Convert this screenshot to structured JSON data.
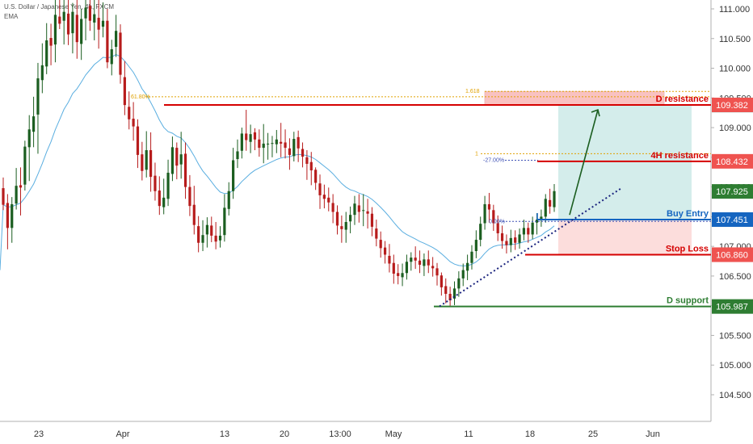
{
  "header": {
    "symbol": "U.S. Dollar / Japanese Yen, 4h, FXCM",
    "indicator": "EMA"
  },
  "colors": {
    "up": "#26a69a",
    "down": "#ef5350",
    "candle_up": "#1b5e20",
    "candle_down": "#b71c1c",
    "ema": "#5aaee0",
    "resistance": "#d50000",
    "support": "#2e7d32",
    "entry": "#1565c0",
    "fib": "#e0a100",
    "fib_blue": "#3f51b5",
    "grid_price_badge": "#ef5350"
  },
  "chart_data": {
    "type": "candlestick",
    "title": "",
    "x_tick_labels": [
      "23",
      "Apr",
      "13",
      "20",
      "13:00",
      "May",
      "11",
      "18",
      "25",
      "Jun"
    ],
    "y_tick_labels": [
      "111.000",
      "110.500",
      "110.000",
      "109.500",
      "109.000",
      "108.500",
      "108.000",
      "107.500",
      "107.000",
      "106.500",
      "106.000",
      "105.500",
      "105.000",
      "104.500"
    ],
    "ylim": [
      104.25,
      111.15
    ],
    "levels": [
      {
        "name": "D resistance",
        "price": 109.382,
        "badge": "109.382",
        "color": "#d50000"
      },
      {
        "name": "4H resistance",
        "price": 108.432,
        "badge": "108.432",
        "color": "#d50000"
      },
      {
        "name": "Buy Entry",
        "price": 107.451,
        "badge": "107.451",
        "color": "#1565c0"
      },
      {
        "name": "Stop Loss",
        "price": 106.86,
        "badge": "106.860",
        "color": "#d50000"
      },
      {
        "name": "D support",
        "price": 105.987,
        "badge": "105.987",
        "color": "#2e7d32"
      }
    ],
    "price_badges": [
      {
        "label": "109.380",
        "price": 109.38,
        "color": "#26a69a"
      },
      {
        "label": "107.925",
        "price": 107.925,
        "color": "#2e7d32"
      },
      {
        "label": "107.450",
        "price": 107.45,
        "color": "#8a8a8a"
      },
      {
        "label": "106.859",
        "price": 106.859,
        "color": "#d50000"
      }
    ],
    "fib_labels": [
      {
        "label": "61.80%",
        "price": 109.52
      },
      {
        "label": "1.618",
        "price": 109.61
      },
      {
        "label": "1",
        "price": 108.56
      },
      {
        "label": "-27.00%",
        "price": 108.45
      },
      {
        "label": "0.00%",
        "price": 107.42
      }
    ],
    "candles": [
      {
        "o": 107.98,
        "h": 108.16,
        "l": 107.61,
        "c": 107.7
      },
      {
        "o": 107.73,
        "h": 107.88,
        "l": 106.95,
        "c": 107.31
      },
      {
        "o": 107.31,
        "h": 107.83,
        "l": 107.06,
        "c": 107.71
      },
      {
        "o": 107.72,
        "h": 108.32,
        "l": 107.62,
        "c": 108.02
      },
      {
        "o": 108.03,
        "h": 108.33,
        "l": 107.52,
        "c": 107.99
      },
      {
        "o": 108.04,
        "h": 108.78,
        "l": 107.94,
        "c": 108.68
      },
      {
        "o": 108.67,
        "h": 109.21,
        "l": 108.1,
        "c": 108.97
      },
      {
        "o": 108.93,
        "h": 109.52,
        "l": 108.67,
        "c": 109.19
      },
      {
        "o": 109.22,
        "h": 110.09,
        "l": 108.56,
        "c": 109.83
      },
      {
        "o": 109.8,
        "h": 110.42,
        "l": 109.58,
        "c": 110.05
      },
      {
        "o": 110.03,
        "h": 110.76,
        "l": 109.9,
        "c": 110.47
      },
      {
        "o": 110.51,
        "h": 110.75,
        "l": 110.05,
        "c": 110.38
      },
      {
        "o": 110.4,
        "h": 111.15,
        "l": 110.1,
        "c": 110.9
      },
      {
        "o": 110.87,
        "h": 111.2,
        "l": 110.66,
        "c": 110.75
      },
      {
        "o": 110.8,
        "h": 111.2,
        "l": 110.4,
        "c": 110.95
      },
      {
        "o": 110.92,
        "h": 111.2,
        "l": 110.39,
        "c": 110.57
      },
      {
        "o": 110.59,
        "h": 111.1,
        "l": 110.25,
        "c": 110.95
      },
      {
        "o": 110.9,
        "h": 111.2,
        "l": 110.16,
        "c": 110.44
      },
      {
        "o": 110.41,
        "h": 111.0,
        "l": 110.14,
        "c": 110.83
      },
      {
        "o": 110.84,
        "h": 111.2,
        "l": 110.47,
        "c": 111.02
      },
      {
        "o": 111.05,
        "h": 111.2,
        "l": 110.63,
        "c": 110.8
      },
      {
        "o": 110.77,
        "h": 111.2,
        "l": 110.47,
        "c": 110.91
      },
      {
        "o": 110.85,
        "h": 111.2,
        "l": 110.33,
        "c": 110.65
      },
      {
        "o": 110.7,
        "h": 111.11,
        "l": 110.52,
        "c": 110.8
      },
      {
        "o": 110.8,
        "h": 111.0,
        "l": 110.0,
        "c": 110.1
      },
      {
        "o": 110.07,
        "h": 110.48,
        "l": 109.88,
        "c": 110.32
      },
      {
        "o": 110.36,
        "h": 110.9,
        "l": 110.19,
        "c": 110.63
      },
      {
        "o": 110.6,
        "h": 110.74,
        "l": 109.74,
        "c": 109.89
      },
      {
        "o": 109.85,
        "h": 110.12,
        "l": 109.21,
        "c": 109.38
      },
      {
        "o": 109.35,
        "h": 109.61,
        "l": 108.97,
        "c": 109.14
      },
      {
        "o": 109.15,
        "h": 109.43,
        "l": 108.78,
        "c": 109.02
      },
      {
        "o": 109.02,
        "h": 109.14,
        "l": 108.32,
        "c": 108.54
      },
      {
        "o": 108.55,
        "h": 108.76,
        "l": 108.11,
        "c": 108.27
      },
      {
        "o": 108.29,
        "h": 108.94,
        "l": 108.16,
        "c": 108.62
      },
      {
        "o": 108.62,
        "h": 108.92,
        "l": 107.92,
        "c": 108.17
      },
      {
        "o": 108.19,
        "h": 108.41,
        "l": 107.77,
        "c": 107.93
      },
      {
        "o": 107.94,
        "h": 108.18,
        "l": 107.53,
        "c": 107.68
      },
      {
        "o": 107.66,
        "h": 108.14,
        "l": 107.54,
        "c": 107.82
      },
      {
        "o": 107.8,
        "h": 108.46,
        "l": 107.68,
        "c": 108.24
      },
      {
        "o": 108.22,
        "h": 108.85,
        "l": 108.1,
        "c": 108.67
      },
      {
        "o": 108.66,
        "h": 108.75,
        "l": 108.13,
        "c": 108.36
      },
      {
        "o": 108.38,
        "h": 108.93,
        "l": 108.14,
        "c": 108.55
      },
      {
        "o": 108.56,
        "h": 108.75,
        "l": 107.8,
        "c": 108.0
      },
      {
        "o": 108.0,
        "h": 108.2,
        "l": 107.51,
        "c": 107.68
      },
      {
        "o": 107.7,
        "h": 108.02,
        "l": 107.2,
        "c": 107.36
      },
      {
        "o": 107.34,
        "h": 107.51,
        "l": 106.9,
        "c": 107.06
      },
      {
        "o": 107.06,
        "h": 107.44,
        "l": 106.92,
        "c": 107.19
      },
      {
        "o": 107.2,
        "h": 107.49,
        "l": 106.98,
        "c": 107.36
      },
      {
        "o": 107.35,
        "h": 107.5,
        "l": 107.07,
        "c": 107.18
      },
      {
        "o": 107.18,
        "h": 107.41,
        "l": 106.95,
        "c": 107.08
      },
      {
        "o": 107.1,
        "h": 107.34,
        "l": 106.98,
        "c": 107.18
      },
      {
        "o": 107.19,
        "h": 107.88,
        "l": 107.08,
        "c": 107.65
      },
      {
        "o": 107.63,
        "h": 108.08,
        "l": 107.52,
        "c": 107.93
      },
      {
        "o": 107.93,
        "h": 108.66,
        "l": 107.8,
        "c": 108.45
      },
      {
        "o": 108.47,
        "h": 108.8,
        "l": 108.32,
        "c": 108.6
      },
      {
        "o": 108.61,
        "h": 109.0,
        "l": 108.48,
        "c": 108.9
      },
      {
        "o": 108.9,
        "h": 109.3,
        "l": 108.61,
        "c": 108.79
      },
      {
        "o": 108.76,
        "h": 109.05,
        "l": 108.57,
        "c": 108.89
      },
      {
        "o": 108.92,
        "h": 108.99,
        "l": 108.62,
        "c": 108.8
      },
      {
        "o": 108.8,
        "h": 108.97,
        "l": 108.51,
        "c": 108.66
      },
      {
        "o": 108.66,
        "h": 109.06,
        "l": 108.4,
        "c": 108.73
      },
      {
        "o": 108.72,
        "h": 108.91,
        "l": 108.46,
        "c": 108.73
      },
      {
        "o": 108.73,
        "h": 108.86,
        "l": 108.5,
        "c": 108.74
      },
      {
        "o": 108.72,
        "h": 108.96,
        "l": 108.57,
        "c": 108.8
      },
      {
        "o": 108.76,
        "h": 109.08,
        "l": 108.5,
        "c": 108.73
      },
      {
        "o": 108.75,
        "h": 108.97,
        "l": 108.48,
        "c": 108.66
      },
      {
        "o": 108.65,
        "h": 108.82,
        "l": 108.29,
        "c": 108.54
      },
      {
        "o": 108.52,
        "h": 108.93,
        "l": 108.43,
        "c": 108.81
      },
      {
        "o": 108.84,
        "h": 108.95,
        "l": 108.42,
        "c": 108.65
      },
      {
        "o": 108.64,
        "h": 108.75,
        "l": 108.33,
        "c": 108.51
      },
      {
        "o": 108.5,
        "h": 108.62,
        "l": 108.12,
        "c": 108.39
      },
      {
        "o": 108.42,
        "h": 108.59,
        "l": 108.03,
        "c": 108.28
      },
      {
        "o": 108.29,
        "h": 108.33,
        "l": 107.95,
        "c": 108.07
      },
      {
        "o": 108.06,
        "h": 108.21,
        "l": 107.63,
        "c": 107.86
      },
      {
        "o": 107.87,
        "h": 108.04,
        "l": 107.64,
        "c": 107.8
      },
      {
        "o": 107.82,
        "h": 107.99,
        "l": 107.59,
        "c": 107.74
      },
      {
        "o": 107.73,
        "h": 107.88,
        "l": 107.39,
        "c": 107.58
      },
      {
        "o": 107.58,
        "h": 107.69,
        "l": 107.2,
        "c": 107.35
      },
      {
        "o": 107.34,
        "h": 107.52,
        "l": 107.06,
        "c": 107.29
      },
      {
        "o": 107.28,
        "h": 107.58,
        "l": 107.06,
        "c": 107.41
      },
      {
        "o": 107.42,
        "h": 107.67,
        "l": 107.22,
        "c": 107.53
      },
      {
        "o": 107.53,
        "h": 107.85,
        "l": 107.36,
        "c": 107.72
      },
      {
        "o": 107.69,
        "h": 107.88,
        "l": 107.4,
        "c": 107.58
      },
      {
        "o": 107.61,
        "h": 107.88,
        "l": 107.34,
        "c": 107.61
      },
      {
        "o": 107.59,
        "h": 107.8,
        "l": 107.3,
        "c": 107.55
      },
      {
        "o": 107.55,
        "h": 107.66,
        "l": 107.17,
        "c": 107.33
      },
      {
        "o": 107.3,
        "h": 107.45,
        "l": 107.0,
        "c": 107.13
      },
      {
        "o": 107.11,
        "h": 107.25,
        "l": 106.81,
        "c": 106.97
      },
      {
        "o": 106.98,
        "h": 107.09,
        "l": 106.71,
        "c": 106.86
      },
      {
        "o": 106.84,
        "h": 107.04,
        "l": 106.56,
        "c": 106.71
      },
      {
        "o": 106.72,
        "h": 106.86,
        "l": 106.37,
        "c": 106.54
      },
      {
        "o": 106.55,
        "h": 106.7,
        "l": 106.36,
        "c": 106.5
      },
      {
        "o": 106.48,
        "h": 106.71,
        "l": 106.33,
        "c": 106.55
      },
      {
        "o": 106.55,
        "h": 106.86,
        "l": 106.44,
        "c": 106.74
      },
      {
        "o": 106.74,
        "h": 106.9,
        "l": 106.59,
        "c": 106.81
      },
      {
        "o": 106.81,
        "h": 107.0,
        "l": 106.62,
        "c": 106.76
      },
      {
        "o": 106.76,
        "h": 106.93,
        "l": 106.55,
        "c": 106.69
      },
      {
        "o": 106.67,
        "h": 106.88,
        "l": 106.5,
        "c": 106.78
      },
      {
        "o": 106.78,
        "h": 106.93,
        "l": 106.55,
        "c": 106.68
      },
      {
        "o": 106.67,
        "h": 106.82,
        "l": 106.49,
        "c": 106.63
      },
      {
        "o": 106.63,
        "h": 106.72,
        "l": 106.34,
        "c": 106.51
      },
      {
        "o": 106.51,
        "h": 106.56,
        "l": 106.17,
        "c": 106.31
      },
      {
        "o": 106.33,
        "h": 106.46,
        "l": 106.04,
        "c": 106.2
      },
      {
        "o": 106.2,
        "h": 106.32,
        "l": 105.98,
        "c": 106.09
      },
      {
        "o": 106.12,
        "h": 106.41,
        "l": 106.01,
        "c": 106.29
      },
      {
        "o": 106.29,
        "h": 106.58,
        "l": 106.15,
        "c": 106.46
      },
      {
        "o": 106.46,
        "h": 106.71,
        "l": 106.33,
        "c": 106.6
      },
      {
        "o": 106.59,
        "h": 106.86,
        "l": 106.43,
        "c": 106.72
      },
      {
        "o": 106.72,
        "h": 107.02,
        "l": 106.61,
        "c": 106.91
      },
      {
        "o": 106.92,
        "h": 107.27,
        "l": 106.8,
        "c": 107.11
      },
      {
        "o": 107.11,
        "h": 107.5,
        "l": 107.0,
        "c": 107.38
      },
      {
        "o": 107.39,
        "h": 107.85,
        "l": 107.28,
        "c": 107.71
      },
      {
        "o": 107.71,
        "h": 107.9,
        "l": 107.4,
        "c": 107.62
      },
      {
        "o": 107.61,
        "h": 107.7,
        "l": 107.26,
        "c": 107.39
      },
      {
        "o": 107.39,
        "h": 107.52,
        "l": 107.09,
        "c": 107.22
      },
      {
        "o": 107.22,
        "h": 107.35,
        "l": 106.96,
        "c": 107.09
      },
      {
        "o": 107.09,
        "h": 107.2,
        "l": 106.88,
        "c": 107.02
      },
      {
        "o": 107.02,
        "h": 107.28,
        "l": 106.9,
        "c": 107.14
      },
      {
        "o": 107.15,
        "h": 107.27,
        "l": 106.94,
        "c": 107.06
      },
      {
        "o": 107.06,
        "h": 107.3,
        "l": 106.96,
        "c": 107.2
      },
      {
        "o": 107.2,
        "h": 107.45,
        "l": 107.1,
        "c": 107.31
      },
      {
        "o": 107.31,
        "h": 107.4,
        "l": 107.06,
        "c": 107.2
      },
      {
        "o": 107.2,
        "h": 107.5,
        "l": 107.12,
        "c": 107.4
      },
      {
        "o": 107.4,
        "h": 107.56,
        "l": 107.2,
        "c": 107.45
      },
      {
        "o": 107.45,
        "h": 107.62,
        "l": 107.33,
        "c": 107.5
      },
      {
        "o": 107.5,
        "h": 107.88,
        "l": 107.4,
        "c": 107.8
      },
      {
        "o": 107.78,
        "h": 107.97,
        "l": 107.55,
        "c": 107.67
      },
      {
        "o": 107.66,
        "h": 108.05,
        "l": 107.58,
        "c": 107.93
      }
    ]
  },
  "overlays": {
    "ema_period": 20
  }
}
